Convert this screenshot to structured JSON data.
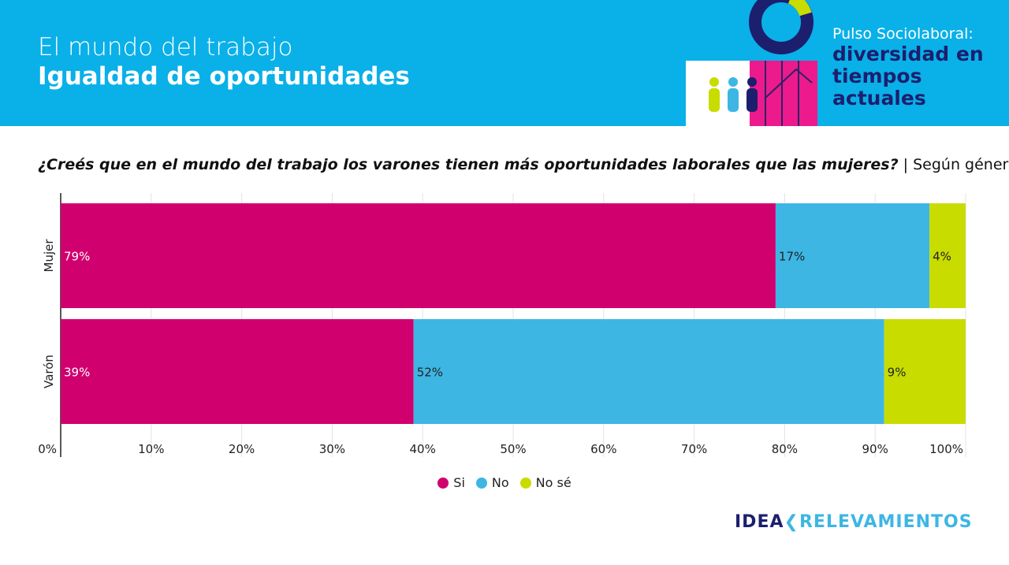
{
  "header": {
    "title": "El mundo del trabajo",
    "subtitle": "Igualdad de oportunidades",
    "brand_top": "Pulso Sociolaboral:",
    "brand_main": "diversidad en tiempos actuales"
  },
  "question": {
    "text": "¿Creés que en el mundo del trabajo los varones tienen más oportunidades laborales que las mujeres?",
    "suffix": " | Según género"
  },
  "footer": {
    "logo_a": "IDEA",
    "logo_b": "RELEVAMIENTOS"
  },
  "chart_data": {
    "type": "bar",
    "orientation": "horizontal",
    "stacked": true,
    "categories": [
      "Mujer",
      "Varón"
    ],
    "series": [
      {
        "name": "Si",
        "color": "#d0006f",
        "values": [
          79,
          39
        ]
      },
      {
        "name": "No",
        "color": "#3db6e4",
        "values": [
          17,
          52
        ]
      },
      {
        "name": "No sé",
        "color": "#c8dc00",
        "values": [
          4,
          9
        ]
      }
    ],
    "xlim": [
      0,
      100
    ],
    "xticks": [
      "0%",
      "10%",
      "20%",
      "30%",
      "40%",
      "50%",
      "60%",
      "70%",
      "80%",
      "90%",
      "100%"
    ],
    "grid": true,
    "legend": "bottom"
  }
}
